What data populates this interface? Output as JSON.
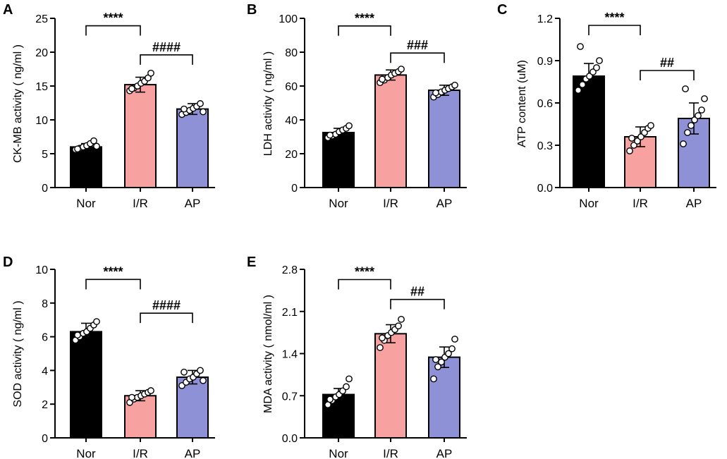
{
  "figure": {
    "colors": {
      "Nor": "#000000",
      "I/R": "#f7a1a1",
      "AP": "#8e91d6",
      "axis": "#000000",
      "dot_fill": "#ffffff"
    }
  },
  "chart_data": [
    {
      "panel": "A",
      "type": "bar",
      "title": "",
      "xlabel": "",
      "ylabel": "CK-MB activity ( ng/ml )",
      "ylim": [
        0,
        25
      ],
      "yticks": [
        0,
        5,
        10,
        15,
        20,
        25
      ],
      "ytick_labels": [
        "0",
        "5",
        "10",
        "15",
        "20",
        "25"
      ],
      "categories": [
        "Nor",
        "I/R",
        "AP"
      ],
      "values": [
        6.0,
        15.2,
        11.6
      ],
      "errors": [
        0.5,
        1.1,
        0.8
      ],
      "points": [
        [
          5.6,
          5.8,
          6.0,
          6.2,
          6.5,
          6.9,
          6.1,
          5.7
        ],
        [
          14.3,
          14.7,
          15.0,
          15.4,
          15.7,
          16.2,
          16.9,
          14.6
        ],
        [
          10.8,
          11.1,
          11.4,
          11.7,
          12.0,
          12.4,
          11.2,
          11.6
        ]
      ],
      "significance": [
        {
          "from": 0,
          "to": 1,
          "label": "****",
          "y": 23.9
        },
        {
          "from": 1,
          "to": 2,
          "label": "####",
          "y": 19.6
        }
      ]
    },
    {
      "panel": "B",
      "type": "bar",
      "title": "",
      "xlabel": "",
      "ylabel": "LDH activity ( ng/ml )",
      "ylim": [
        0,
        100
      ],
      "yticks": [
        0,
        20,
        40,
        60,
        80,
        100
      ],
      "ytick_labels": [
        "0",
        "20",
        "40",
        "60",
        "80",
        "100"
      ],
      "categories": [
        "Nor",
        "I/R",
        "AP"
      ],
      "values": [
        32.5,
        66.5,
        57.5
      ],
      "errors": [
        2.5,
        3.0,
        3.0
      ],
      "points": [
        [
          29.5,
          30.5,
          31.5,
          33.0,
          34.0,
          35.0,
          36.5,
          31.0
        ],
        [
          62.0,
          63.5,
          65.0,
          66.5,
          67.5,
          68.5,
          70.0,
          64.0
        ],
        [
          53.5,
          55.0,
          56.5,
          57.5,
          58.5,
          59.5,
          60.5,
          56.0
        ]
      ],
      "significance": [
        {
          "from": 0,
          "to": 1,
          "label": "****",
          "y": 95.5
        },
        {
          "from": 1,
          "to": 2,
          "label": "###",
          "y": 79.5
        }
      ]
    },
    {
      "panel": "C",
      "type": "bar",
      "title": "",
      "xlabel": "",
      "ylabel": "ATP content (uM)",
      "ylim": [
        0,
        1.2
      ],
      "yticks": [
        0,
        0.3,
        0.6,
        0.9,
        1.2
      ],
      "ytick_labels": [
        "0.0",
        "0.3",
        "0.6",
        "0.9",
        "1.2"
      ],
      "categories": [
        "Nor",
        "I/R",
        "AP"
      ],
      "values": [
        0.79,
        0.36,
        0.49
      ],
      "errors": [
        0.09,
        0.07,
        0.11
      ],
      "points": [
        [
          0.69,
          0.73,
          0.77,
          0.79,
          0.82,
          0.85,
          0.9,
          1.0
        ],
        [
          0.26,
          0.3,
          0.33,
          0.36,
          0.39,
          0.42,
          0.44,
          0.35
        ],
        [
          0.31,
          0.39,
          0.44,
          0.48,
          0.51,
          0.55,
          0.63,
          0.7
        ]
      ],
      "significance": [
        {
          "from": 0,
          "to": 1,
          "label": "****",
          "y": 1.15
        },
        {
          "from": 1,
          "to": 2,
          "label": "##",
          "y": 0.83
        }
      ]
    },
    {
      "panel": "D",
      "type": "bar",
      "title": "",
      "xlabel": "",
      "ylabel": "SOD activity ( ng/ml )",
      "ylim": [
        0,
        10
      ],
      "yticks": [
        0,
        2,
        4,
        6,
        8,
        10
      ],
      "ytick_labels": [
        "0",
        "2",
        "4",
        "6",
        "8",
        "10"
      ],
      "categories": [
        "Nor",
        "I/R",
        "AP"
      ],
      "values": [
        6.3,
        2.5,
        3.6
      ],
      "errors": [
        0.5,
        0.3,
        0.4
      ],
      "points": [
        [
          5.8,
          6.0,
          6.2,
          6.3,
          6.5,
          6.7,
          6.9,
          6.1
        ],
        [
          2.1,
          2.3,
          2.4,
          2.5,
          2.6,
          2.7,
          2.8,
          2.4
        ],
        [
          3.1,
          3.3,
          3.5,
          3.6,
          3.8,
          4.0,
          3.4,
          3.9
        ]
      ],
      "significance": [
        {
          "from": 0,
          "to": 1,
          "label": "****",
          "y": 9.4
        },
        {
          "from": 1,
          "to": 2,
          "label": "####",
          "y": 7.4
        }
      ]
    },
    {
      "panel": "E",
      "type": "bar",
      "title": "",
      "xlabel": "",
      "ylabel": "MDA activity ( nmol/ml )",
      "ylim": [
        0,
        2.8
      ],
      "yticks": [
        0,
        0.7,
        1.4,
        2.1,
        2.8
      ],
      "ytick_labels": [
        "0.0",
        "0.7",
        "1.4",
        "2.1",
        "2.8"
      ],
      "categories": [
        "Nor",
        "I/R",
        "AP"
      ],
      "values": [
        0.72,
        1.73,
        1.34
      ],
      "errors": [
        0.1,
        0.15,
        0.17
      ],
      "points": [
        [
          0.55,
          0.62,
          0.68,
          0.72,
          0.78,
          0.85,
          0.98,
          0.64
        ],
        [
          1.5,
          1.62,
          1.7,
          1.75,
          1.8,
          1.86,
          1.97,
          1.66
        ],
        [
          0.98,
          1.18,
          1.26,
          1.34,
          1.4,
          1.48,
          1.64,
          1.3
        ]
      ],
      "significance": [
        {
          "from": 0,
          "to": 1,
          "label": "****",
          "y": 2.63
        },
        {
          "from": 1,
          "to": 2,
          "label": "##",
          "y": 2.3
        }
      ]
    }
  ]
}
